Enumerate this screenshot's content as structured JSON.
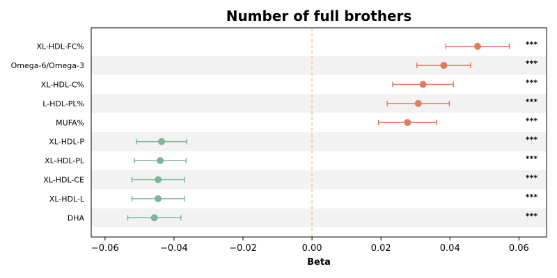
{
  "chart_data": {
    "type": "scatter",
    "subtype": "forest-plot",
    "title": "Number of full brothers",
    "xlabel": "Beta",
    "ylabel": "",
    "xlim": [
      -0.064,
      0.068
    ],
    "xticks": [
      -0.06,
      -0.04,
      -0.02,
      0.0,
      0.02,
      0.04,
      0.06
    ],
    "xtick_labels": [
      "−0.06",
      "−0.04",
      "−0.02",
      "0.00",
      "0.02",
      "0.04",
      "0.06"
    ],
    "reference_line": 0.0,
    "grid": false,
    "row_shading": "alternating",
    "colors": {
      "positive": "#e07b5f",
      "negative": "#7fb39b",
      "reference_line": "#f5c98a",
      "band": "#f2f2f2"
    },
    "rows": [
      {
        "label": "XL-HDL-FC%",
        "beta": 0.048,
        "ci_low": 0.0388,
        "ci_high": 0.0572,
        "significance": "***"
      },
      {
        "label": "Omega-6/Omega-3",
        "beta": 0.0382,
        "ci_low": 0.0304,
        "ci_high": 0.046,
        "significance": "***"
      },
      {
        "label": "XL-HDL-C%",
        "beta": 0.0322,
        "ci_low": 0.0234,
        "ci_high": 0.041,
        "significance": "***"
      },
      {
        "label": "L-HDL-PL%",
        "beta": 0.0308,
        "ci_low": 0.0218,
        "ci_high": 0.0398,
        "significance": "***"
      },
      {
        "label": "MUFA%",
        "beta": 0.0277,
        "ci_low": 0.0193,
        "ci_high": 0.0361,
        "significance": "***"
      },
      {
        "label": "XL-HDL-P",
        "beta": -0.0436,
        "ci_low": -0.0509,
        "ci_high": -0.0363,
        "significance": "***"
      },
      {
        "label": "XL-HDL-PL",
        "beta": -0.044,
        "ci_low": -0.0515,
        "ci_high": -0.0365,
        "significance": "***"
      },
      {
        "label": "XL-HDL-CE",
        "beta": -0.0446,
        "ci_low": -0.0522,
        "ci_high": -0.037,
        "significance": "***"
      },
      {
        "label": "XL-HDL-L",
        "beta": -0.0446,
        "ci_low": -0.0522,
        "ci_high": -0.037,
        "significance": "***"
      },
      {
        "label": "DHA",
        "beta": -0.0457,
        "ci_low": -0.0534,
        "ci_high": -0.038,
        "significance": "***"
      }
    ]
  }
}
